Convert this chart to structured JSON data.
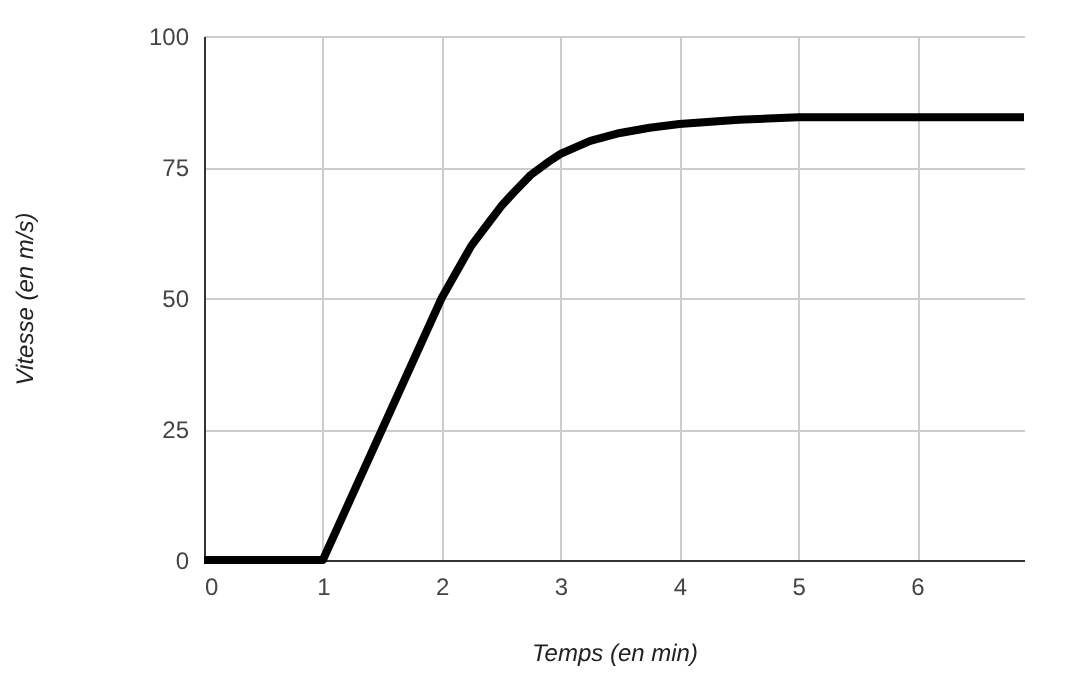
{
  "chart_data": {
    "type": "line",
    "xlabel": "Temps (en min)",
    "ylabel": "Vitesse (en m/s)",
    "x": [
      0,
      1,
      1.5,
      2,
      2.1,
      2.25,
      2.4,
      2.5,
      2.6,
      2.75,
      2.9,
      3,
      3.25,
      3.5,
      3.75,
      4,
      4.5,
      5,
      6,
      6.9
    ],
    "series": [
      {
        "color": "#000000",
        "values": [
          0,
          0,
          25,
          50,
          54,
          60,
          64.5,
          67.5,
          70,
          73.5,
          76,
          77.5,
          80,
          81.5,
          82.5,
          83.2,
          84,
          84.5,
          84.5,
          84.5
        ]
      }
    ],
    "xlim": [
      0,
      6.9
    ],
    "xticks": [
      0,
      1,
      2,
      3,
      4,
      5,
      6
    ],
    "ylim": [
      0,
      100
    ],
    "yticks": [
      0,
      25,
      50,
      75,
      100
    ],
    "grid": true,
    "marker": "none",
    "line_style": "solid"
  }
}
